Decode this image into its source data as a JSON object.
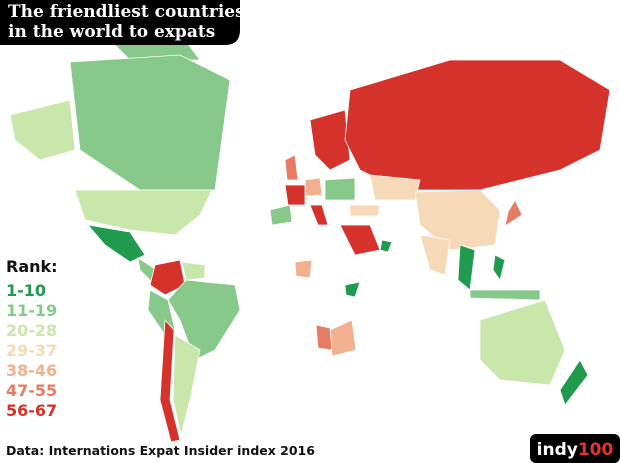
{
  "title": [
    "The friendliest countries",
    "in the world to expats"
  ],
  "legend": {
    "title": "Rank:",
    "items": [
      {
        "label": "1-10",
        "color": "#1f9a4f"
      },
      {
        "label": "11-19",
        "color": "#86c98a"
      },
      {
        "label": "20-28",
        "color": "#c9e6ab"
      },
      {
        "label": "29-37",
        "color": "#f6d9b6"
      },
      {
        "label": "38-46",
        "color": "#f2b08f"
      },
      {
        "label": "47-55",
        "color": "#e87b63"
      },
      {
        "label": "56-67",
        "color": "#d6322c"
      }
    ]
  },
  "source": "Data: Internations Expat Insider index 2016",
  "logo": [
    "indy",
    "100"
  ]
}
